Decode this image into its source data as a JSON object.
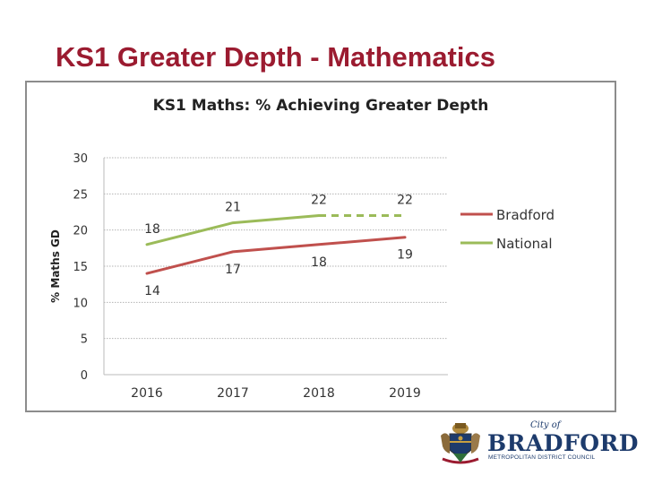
{
  "slide": {
    "title": "KS1 Greater Depth - Mathematics"
  },
  "chart_data": {
    "type": "line",
    "title": "KS1 Maths: % Achieving Greater Depth",
    "ylabel": "% Maths GD",
    "xlabel": "",
    "categories": [
      "2016",
      "2017",
      "2018",
      "2019"
    ],
    "yticks": [
      0,
      5,
      10,
      15,
      20,
      25,
      30
    ],
    "ylim": [
      0,
      30
    ],
    "grid": "horizontal dotted",
    "legend": "right",
    "series": [
      {
        "name": "Bradford",
        "color": "#c0504d",
        "values": [
          14,
          17,
          18,
          19
        ],
        "labels": [
          "14",
          "17",
          "18",
          "19"
        ],
        "label_position": "below"
      },
      {
        "name": "National",
        "color": "#9bbb59",
        "values": [
          18,
          21,
          22,
          22
        ],
        "labels": [
          "18",
          "21",
          "22",
          "22"
        ],
        "label_position": "above",
        "dashed_from_index": 2
      }
    ]
  },
  "logo": {
    "small": "City of",
    "main": "BRADFORD",
    "sub": "METROPOLITAN DISTRICT COUNCIL"
  }
}
